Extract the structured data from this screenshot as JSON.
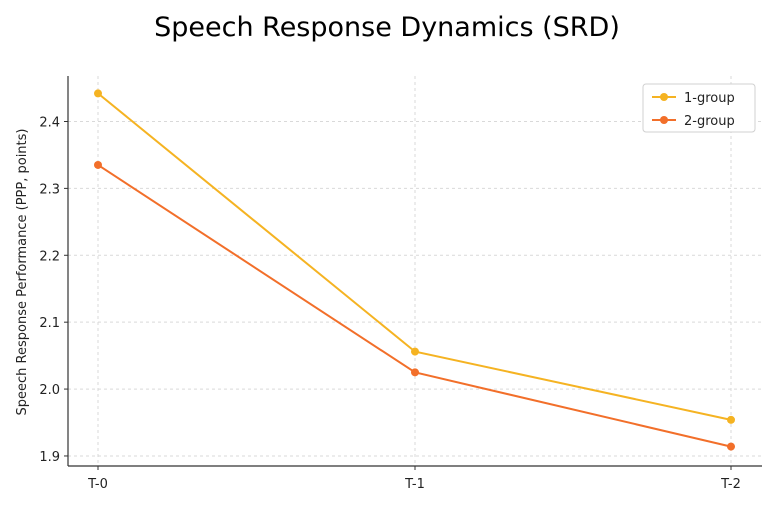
{
  "chart_data": {
    "type": "line",
    "title": "Speech Response Dynamics (SRD)",
    "xlabel": "",
    "ylabel": "Speech Response Performance (PPP, points)",
    "categories": [
      "T-0",
      "T-1",
      "T-2"
    ],
    "series": [
      {
        "name": "1-group",
        "color": "#f5b322",
        "values": [
          2.442,
          2.056,
          1.954
        ]
      },
      {
        "name": "2-group",
        "color": "#f26f2a",
        "values": [
          2.335,
          2.025,
          1.914
        ]
      }
    ],
    "ylim": [
      1.885,
      2.468
    ],
    "yticks": [
      1.9,
      2.0,
      2.1,
      2.2,
      2.3,
      2.4
    ],
    "ytick_labels": [
      "1.9",
      "2.0",
      "2.1",
      "2.2",
      "2.3",
      "2.4"
    ],
    "grid": true,
    "legend_position": "top-right"
  }
}
